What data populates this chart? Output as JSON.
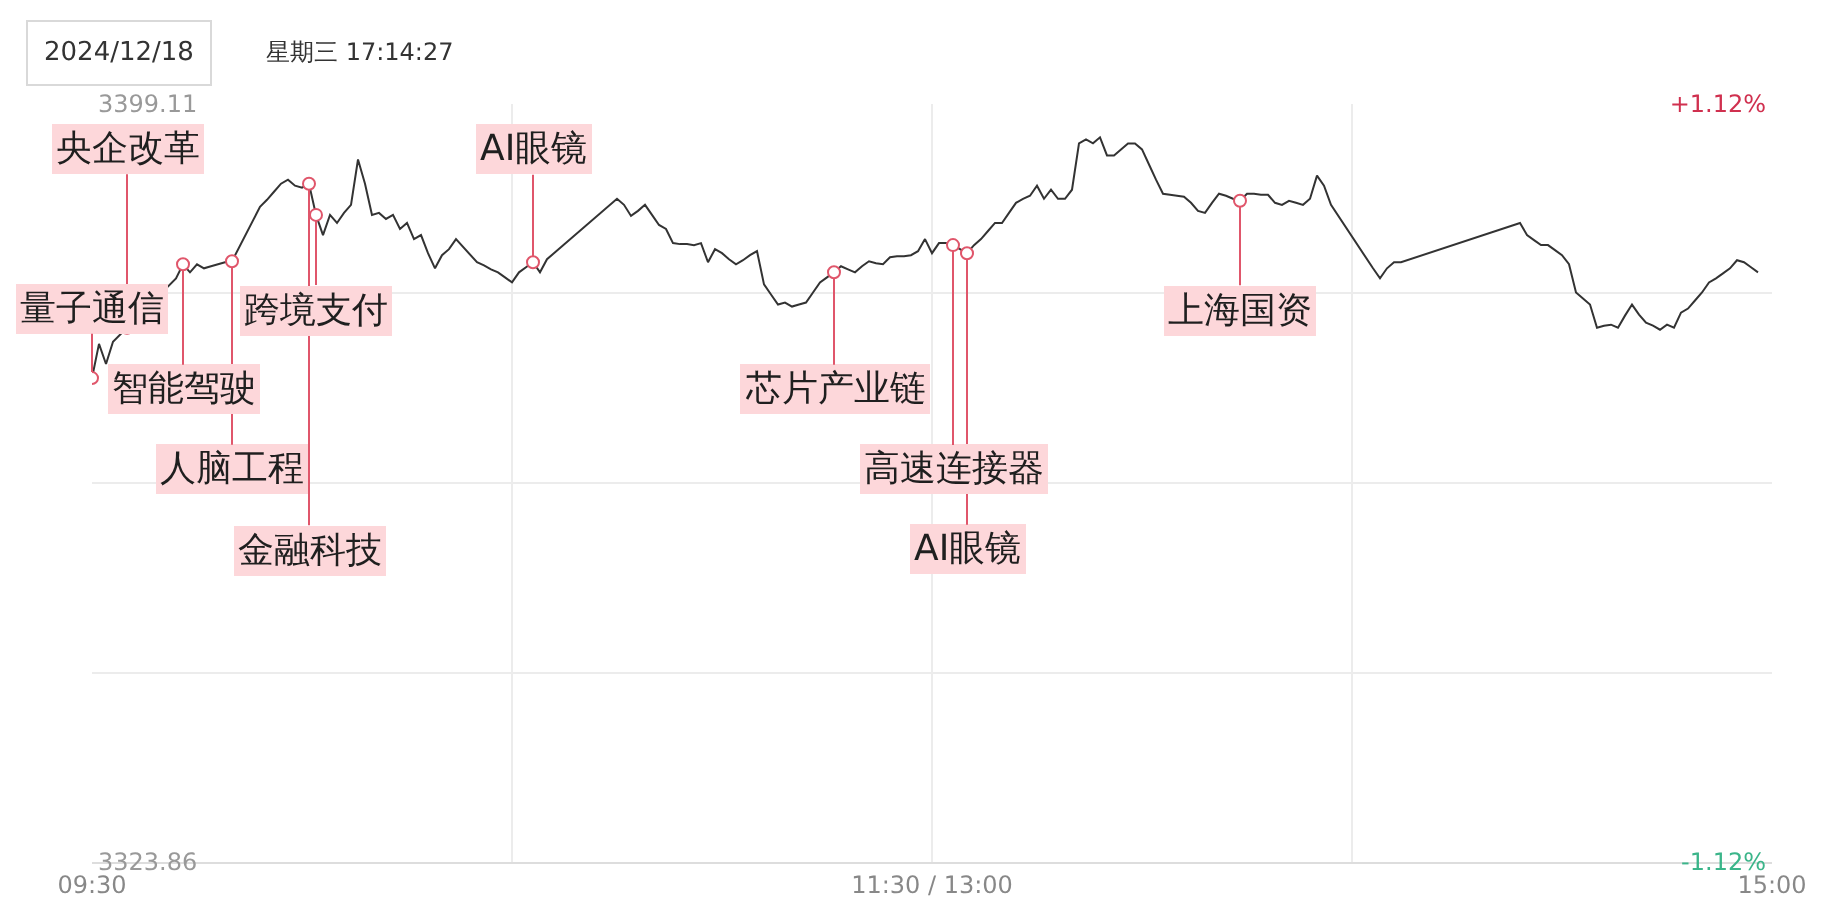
{
  "chart_data": {
    "type": "line",
    "categories": [
      "09:30",
      null,
      null,
      null,
      null,
      null,
      null,
      null,
      null,
      null,
      null,
      null,
      null,
      null,
      null,
      null,
      null,
      null,
      null,
      null,
      null,
      null,
      null,
      null,
      null,
      null,
      null,
      null,
      null,
      null,
      null,
      null,
      null,
      null,
      null,
      null,
      null,
      null,
      null,
      null,
      null,
      null,
      null,
      null,
      null,
      null,
      null,
      null,
      null,
      null,
      null,
      null,
      null,
      null,
      null,
      null,
      null,
      null,
      null,
      null,
      null,
      null,
      null,
      null,
      null,
      null,
      null,
      null,
      null,
      null,
      null,
      null,
      null,
      null,
      null,
      null,
      null,
      null,
      null,
      null,
      null,
      null,
      null,
      null,
      null,
      null,
      null,
      null,
      null,
      null,
      null,
      null,
      null,
      null,
      null,
      null,
      null,
      null,
      null,
      null,
      null,
      null,
      null,
      null,
      null,
      null,
      null,
      null,
      null,
      null,
      null,
      null,
      null,
      null,
      null,
      null,
      null,
      null,
      null,
      null,
      "11:30 / 13:00",
      null,
      null,
      null,
      null,
      null,
      null,
      null,
      null,
      null,
      null,
      null,
      null,
      null,
      null,
      null,
      null,
      null,
      null,
      null,
      null,
      null,
      null,
      null,
      null,
      null,
      null,
      null,
      null,
      null,
      null,
      null,
      null,
      null,
      null,
      null,
      null,
      null,
      null,
      null,
      null,
      null,
      null,
      null,
      null,
      null,
      null,
      null,
      null,
      null,
      null,
      null,
      null,
      null,
      null,
      null,
      null,
      null,
      null,
      null,
      null,
      null,
      null,
      null,
      null,
      null,
      null,
      null,
      null,
      null,
      null,
      null,
      null,
      null,
      null,
      null,
      null,
      null,
      null,
      null,
      null,
      null,
      null,
      null,
      null,
      null,
      null,
      null,
      null,
      null,
      null,
      null,
      null,
      null,
      null,
      null,
      null,
      null,
      null,
      null,
      null,
      null,
      null,
      null,
      null,
      null,
      null,
      null,
      null,
      null,
      null,
      null,
      null,
      null,
      null,
      null,
      null,
      null,
      null,
      null,
      "15:00"
    ],
    "series": [
      {
        "color": "#333333",
        "values": [
          3371.9,
          3375.3,
          3373.3,
          3375.5,
          null,
          null,
          null,
          null,
          null,
          null,
          null,
          null,
          3381.8,
          3383.2,
          3382.4,
          3383.2,
          3382.8,
          3383.0,
          3383.2,
          3383.4,
          3383.5,
          null,
          null,
          null,
          3388.9,
          3389.6,
          3390.4,
          3391.2,
          3391.6,
          3391.0,
          3390.8,
          3391.2,
          3388.1,
          3386.1,
          3388.1,
          3387.3,
          3388.3,
          3389.1,
          3393.6,
          3391.2,
          3388.1,
          3388.3,
          3387.7,
          3388.1,
          3386.7,
          3387.3,
          3385.7,
          3386.1,
          3384.3,
          3382.8,
          3384.1,
          3384.7,
          3385.7,
          null,
          null,
          3383.4,
          3383.1,
          3382.7,
          3382.4,
          3381.9,
          3381.4,
          3382.4,
          3382.9,
          3383.4,
          3382.4,
          3383.7,
          null,
          null,
          null,
          null,
          null,
          null,
          null,
          null,
          null,
          3389.7,
          3389.1,
          3388.0,
          3388.5,
          3389.1,
          3388.1,
          3387.1,
          3386.7,
          3385.3,
          3385.2,
          3385.2,
          3385.1,
          3385.3,
          3383.4,
          3384.7,
          3384.3,
          3383.7,
          3383.2,
          3383.6,
          3384.1,
          3384.5,
          3381.2,
          3380.2,
          3379.2,
          3379.4,
          3379.0,
          3379.2,
          3379.4,
          3380.4,
          3381.4,
          3381.9,
          3382.4,
          3383.0,
          3382.7,
          3382.4,
          3383.0,
          3383.5,
          3383.3,
          3383.2,
          3383.9,
          3384.0,
          3384.0,
          3384.1,
          3384.5,
          3385.7,
          3384.3,
          3385.3,
          3385.3,
          3385.1,
          3384.7,
          3384.3,
          3385.1,
          3385.7,
          3386.5,
          3387.3,
          3387.3,
          3388.3,
          3389.3,
          3389.7,
          3390.0,
          3391.0,
          3389.7,
          3390.6,
          3389.7,
          3389.7,
          3390.6,
          3395.2,
          3395.6,
          3395.2,
          3395.8,
          3394.0,
          3394.0,
          3394.6,
          3395.2,
          3395.2,
          3394.6,
          3393.1,
          3391.6,
          3390.2,
          3390.1,
          3390.0,
          3389.9,
          3389.3,
          3388.5,
          3388.3,
          3389.3,
          3390.2,
          3390.0,
          3389.7,
          3389.5,
          3390.2,
          3390.2,
          3390.1,
          3390.1,
          3389.3,
          3389.1,
          3389.5,
          3389.3,
          3389.1,
          3389.7,
          3392.0,
          3391.0,
          3389.1,
          null,
          null,
          null,
          null,
          null,
          3382.8,
          3381.8,
          3382.8,
          3383.4,
          3383.4,
          null,
          null,
          null,
          null,
          null,
          null,
          null,
          null,
          null,
          null,
          null,
          null,
          null,
          null,
          null,
          null,
          3387.3,
          3386.1,
          3385.6,
          3385.1,
          3385.1,
          3384.6,
          3384.1,
          3383.2,
          3380.4,
          3379.8,
          3379.2,
          3376.9,
          3377.1,
          3377.2,
          3376.9,
          3378.1,
          3379.2,
          3378.2,
          3377.4,
          3377.1,
          3376.7,
          3377.2,
          3376.9,
          3378.4,
          3378.8,
          3379.6,
          3380.4,
          3381.4,
          3381.8,
          3382.3,
          3382.8,
          3383.6,
          3383.4,
          3382.9,
          3382.4,
          null,
          null
        ]
      }
    ],
    "ylim": [
      3323.86,
      3399.11
    ],
    "yticks": [
      3399.11,
      {
        "value": 3380.3,
        "label": null
      },
      {
        "value": 3361.49,
        "label": null
      },
      {
        "value": 3342.67,
        "label": null
      },
      3323.86
    ],
    "y2lim": [
      -1.12,
      1.12
    ],
    "y2ticks": [
      {
        "value": 1.12,
        "label": "+1.12%"
      },
      {
        "value": -1.12,
        "label": "-1.12%"
      }
    ],
    "grid": true,
    "annotations": [
      "2024/12/18",
      "星期三 17:14:27",
      {
        "text": "央企改革",
        "y": 3376.9
      },
      {
        "text": "量子通信",
        "y": 3371.9
      },
      {
        "text": "智能驾驶",
        "y": 3383.2
      },
      {
        "text": "人脑工程",
        "y": 3383.5
      },
      {
        "text": "金融科技",
        "y": 3391.2
      },
      {
        "text": "跨境支付",
        "y": 3388.1
      },
      {
        "text": "AI眼镜",
        "y": 3383.4
      },
      {
        "text": "芯片产业链",
        "y": 3382.4
      },
      {
        "text": "高速连接器",
        "y": 3385.1
      },
      {
        "text": "AI眼镜",
        "y": 3384.3
      },
      {
        "text": "上海国资",
        "y": 3389.5
      }
    ]
  }
}
